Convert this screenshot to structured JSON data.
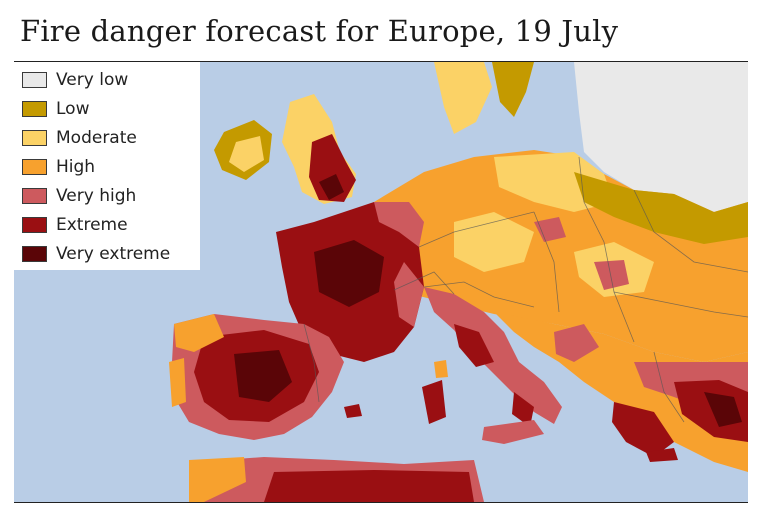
{
  "title": "Fire danger forecast for Europe, 19 July",
  "legend": [
    {
      "label": "Very low",
      "color": "#e9e9e9"
    },
    {
      "label": "Low",
      "color": "#c49a00"
    },
    {
      "label": "Moderate",
      "color": "#fbd266"
    },
    {
      "label": "High",
      "color": "#f7a12e"
    },
    {
      "label": "Very high",
      "color": "#cd5a5e"
    },
    {
      "label": "Extreme",
      "color": "#9a0f12"
    },
    {
      "label": "Very extreme",
      "color": "#5a0507"
    }
  ],
  "colors": {
    "sea": "#b9cde6",
    "border_lines": "#555555"
  }
}
